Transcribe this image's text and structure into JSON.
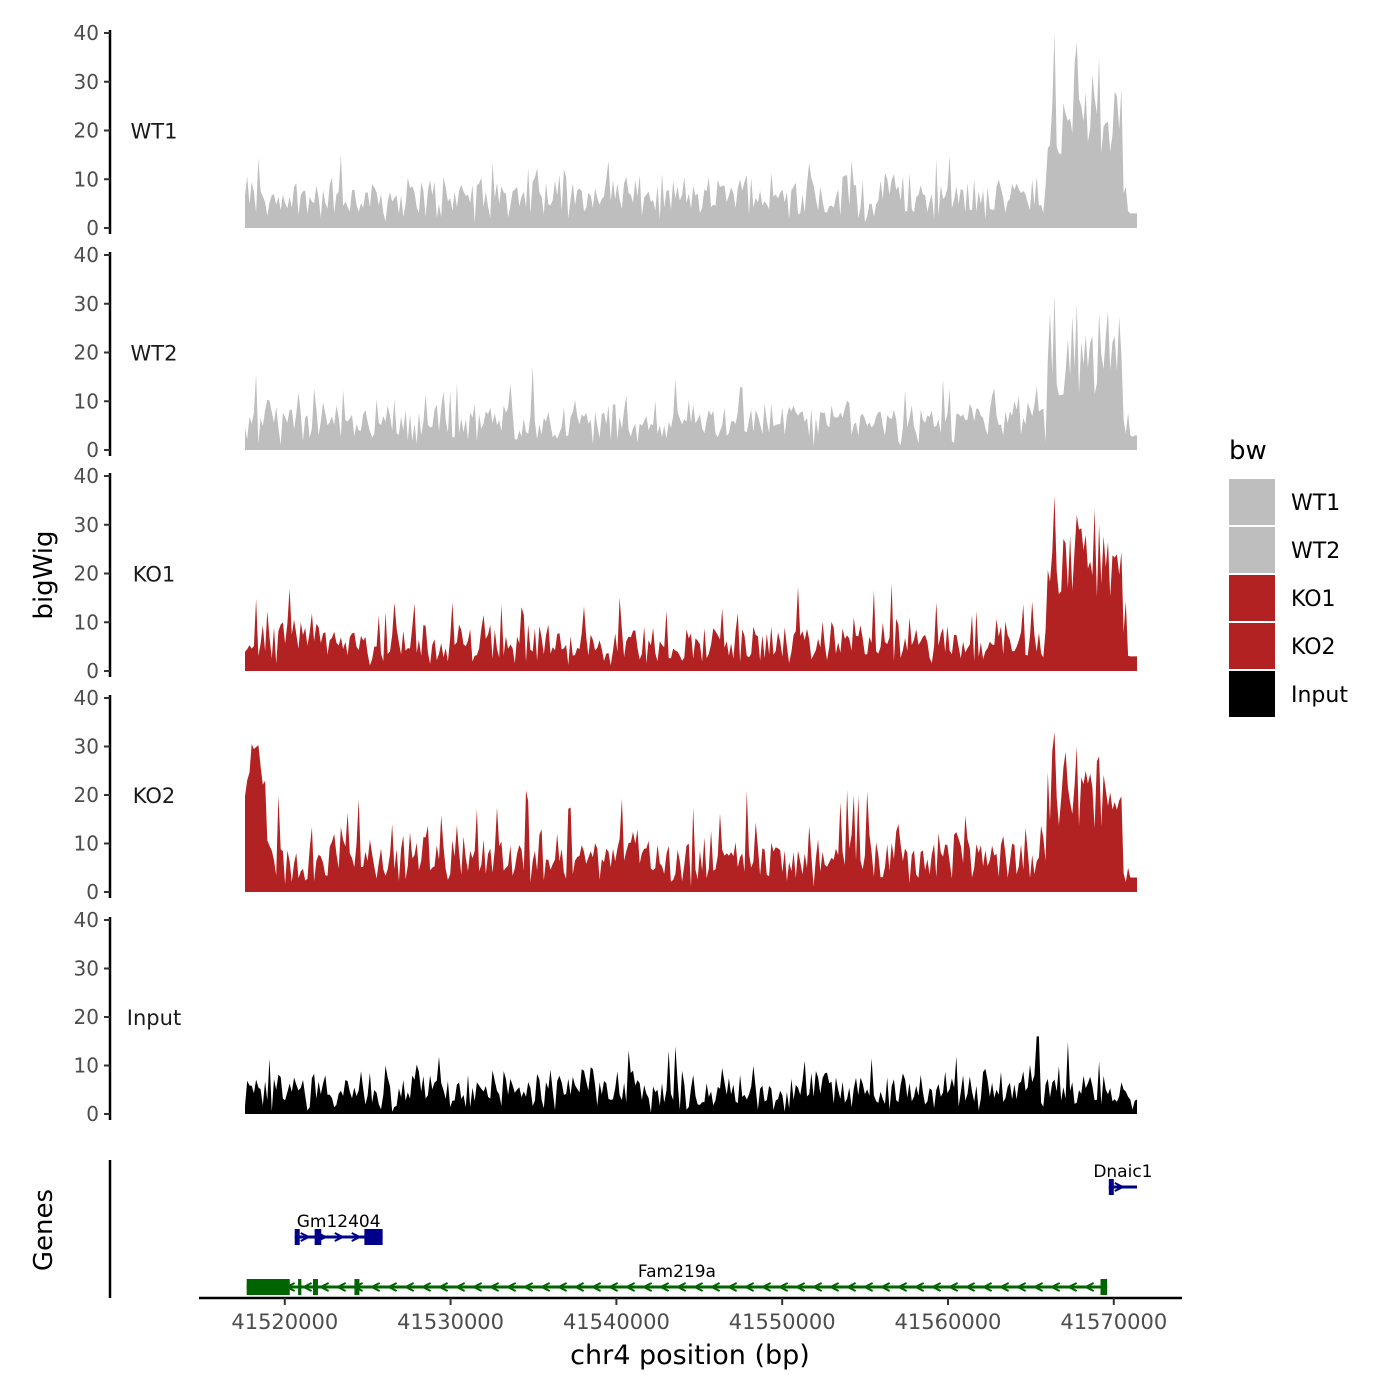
{
  "chart_data": {
    "type": "area",
    "ylabel": "bigWig",
    "xlabel": "chr4 position (bp)",
    "xlim": [
      41517600,
      41571400
    ],
    "ylim": [
      0,
      40
    ],
    "yticks": [
      0,
      10,
      20,
      30,
      40
    ],
    "xticks": [
      41520000,
      41530000,
      41540000,
      41550000,
      41560000,
      41570000
    ],
    "xtick_labels": [
      "41520000",
      "41530000",
      "41540000",
      "41550000",
      "41560000",
      "41570000"
    ],
    "legend": {
      "title": "bw",
      "position": "right",
      "entries": [
        {
          "label": "WT1",
          "color": "#bebebe"
        },
        {
          "label": "WT2",
          "color": "#bebebe"
        },
        {
          "label": "KO1",
          "color": "#b22222"
        },
        {
          "label": "KO2",
          "color": "#b22222"
        },
        {
          "label": "Input",
          "color": "#000000"
        }
      ]
    },
    "series": [
      {
        "name": "WT1",
        "color": "#bebebe",
        "x_start": 41517600,
        "x_end": 41571400,
        "baseline": 4.5,
        "noise": 5.5,
        "peak_prob": 0.16,
        "peak_max": 9,
        "peak_region": {
          "start": 41566000,
          "end": 41570500,
          "level": 22,
          "spikes": [
            40,
            38,
            35
          ]
        }
      },
      {
        "name": "WT2",
        "color": "#bebebe",
        "x_start": 41517600,
        "x_end": 41571400,
        "baseline": 4.0,
        "noise": 5.0,
        "peak_prob": 0.14,
        "peak_max": 8,
        "peak_region": {
          "start": 41566000,
          "end": 41570500,
          "level": 17,
          "spikes": [
            32,
            30,
            28
          ]
        }
      },
      {
        "name": "KO1",
        "color": "#b22222",
        "x_start": 41517600,
        "x_end": 41571400,
        "baseline": 4.0,
        "noise": 5.0,
        "peak_prob": 0.14,
        "peak_max": 11,
        "peak_region": {
          "start": 41566000,
          "end": 41570500,
          "level": 22,
          "spikes": [
            36,
            32,
            30
          ]
        }
      },
      {
        "name": "KO2",
        "color": "#b22222",
        "x_start": 41517600,
        "x_end": 41571400,
        "baseline": 5.0,
        "noise": 6.0,
        "peak_prob": 0.15,
        "peak_max": 12,
        "early_peak": {
          "x": 41518200,
          "value": 32
        },
        "peak_region": {
          "start": 41566000,
          "end": 41570500,
          "level": 20,
          "spikes": [
            33,
            30,
            28
          ]
        }
      },
      {
        "name": "Input",
        "color": "#000000",
        "x_start": 41517600,
        "x_end": 41571400,
        "baseline": 3.5,
        "noise": 5.0,
        "peak_prob": 0.12,
        "peak_max": 7,
        "spike": {
          "x": 41565400,
          "value": 16
        }
      }
    ],
    "genes_panel": {
      "ylabel": "Genes",
      "genes": [
        {
          "name": "Gm12404",
          "start": 41520600,
          "end": 41525900,
          "strand": "+",
          "color": "#00008b",
          "row": 2,
          "exons": [
            [
              41520600,
              41520900
            ],
            [
              41521800,
              41522200
            ],
            [
              41524800,
              41525900
            ]
          ]
        },
        {
          "name": "Fam219a",
          "start": 41517700,
          "end": 41569600,
          "strand": "-",
          "color": "#006400",
          "row": 1,
          "exons": [
            [
              41517700,
              41520300
            ],
            [
              41520800,
              41521000
            ],
            [
              41521700,
              41522000
            ],
            [
              41524200,
              41524500
            ],
            [
              41569200,
              41569600
            ]
          ]
        },
        {
          "name": "Dnaic1",
          "start": 41569700,
          "end": 41571400,
          "strand": "+",
          "color": "#00008b",
          "row": 3,
          "exons": [
            [
              41569700,
              41570000
            ]
          ]
        }
      ]
    }
  }
}
